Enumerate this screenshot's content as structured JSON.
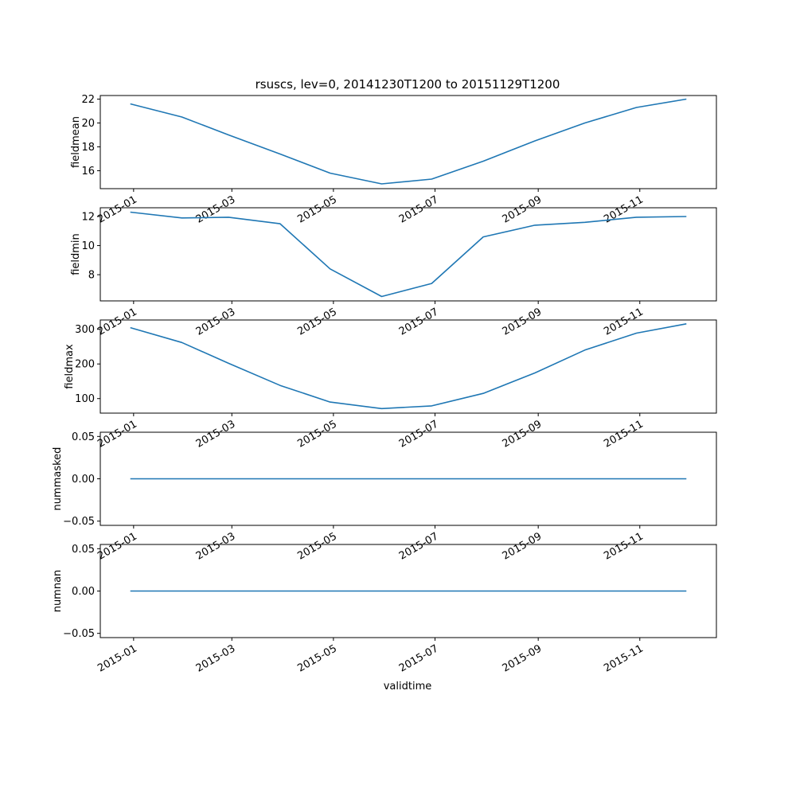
{
  "colors": {
    "series": "#1f77b4",
    "axes": "#000000",
    "background": "#ffffff"
  },
  "chart_data": {
    "type": "line",
    "title": "rsuscs, lev=0, 20141230T1200 to 20151129T1200",
    "xlabel": "validtime",
    "x": [
      "2014-12-30",
      "2015-01-30",
      "2015-02-27",
      "2015-03-30",
      "2015-04-29",
      "2015-05-30",
      "2015-06-29",
      "2015-07-30",
      "2015-08-30",
      "2015-09-29",
      "2015-10-30",
      "2015-11-29"
    ],
    "xlim": [
      "2014-12-12",
      "2015-12-17"
    ],
    "xticks": [
      {
        "date": "2015-01-01",
        "label": "2015-01"
      },
      {
        "date": "2015-03-01",
        "label": "2015-03"
      },
      {
        "date": "2015-05-01",
        "label": "2015-05"
      },
      {
        "date": "2015-07-01",
        "label": "2015-07"
      },
      {
        "date": "2015-09-01",
        "label": "2015-09"
      },
      {
        "date": "2015-11-01",
        "label": "2015-11"
      }
    ],
    "grid": false,
    "legend": "none",
    "panels": [
      {
        "ylabel": "fieldmean",
        "ylim": [
          14.5,
          22.3
        ],
        "yticks": [
          16,
          18,
          20,
          22
        ],
        "yticklabels": [
          "16",
          "18",
          "20",
          "22"
        ],
        "values": [
          21.6,
          20.5,
          19.0,
          17.4,
          15.8,
          14.9,
          15.3,
          16.8,
          18.5,
          20.0,
          21.3,
          22.0
        ]
      },
      {
        "ylabel": "fieldmin",
        "ylim": [
          6.2,
          12.6
        ],
        "yticks": [
          8,
          10,
          12
        ],
        "yticklabels": [
          "8",
          "10",
          "12"
        ],
        "values": [
          12.3,
          11.9,
          11.95,
          11.5,
          8.4,
          6.5,
          7.4,
          10.6,
          11.4,
          11.6,
          11.95,
          12.0
        ]
      },
      {
        "ylabel": "fieldmax",
        "ylim": [
          58,
          327
        ],
        "yticks": [
          100,
          200,
          300
        ],
        "yticklabels": [
          "100",
          "200",
          "300"
        ],
        "values": [
          305,
          262,
          202,
          138,
          90,
          71,
          79,
          115,
          174,
          240,
          289,
          316
        ]
      },
      {
        "ylabel": "nummasked",
        "ylim": [
          -0.055,
          0.055
        ],
        "yticks": [
          -0.05,
          0.0,
          0.05
        ],
        "yticklabels": [
          "−0.05",
          "0.00",
          "0.05"
        ],
        "values": [
          0,
          0,
          0,
          0,
          0,
          0,
          0,
          0,
          0,
          0,
          0,
          0
        ]
      },
      {
        "ylabel": "numnan",
        "ylim": [
          -0.055,
          0.055
        ],
        "yticks": [
          -0.05,
          0.0,
          0.05
        ],
        "yticklabels": [
          "−0.05",
          "0.00",
          "0.05"
        ],
        "values": [
          0,
          0,
          0,
          0,
          0,
          0,
          0,
          0,
          0,
          0,
          0,
          0
        ]
      }
    ]
  }
}
